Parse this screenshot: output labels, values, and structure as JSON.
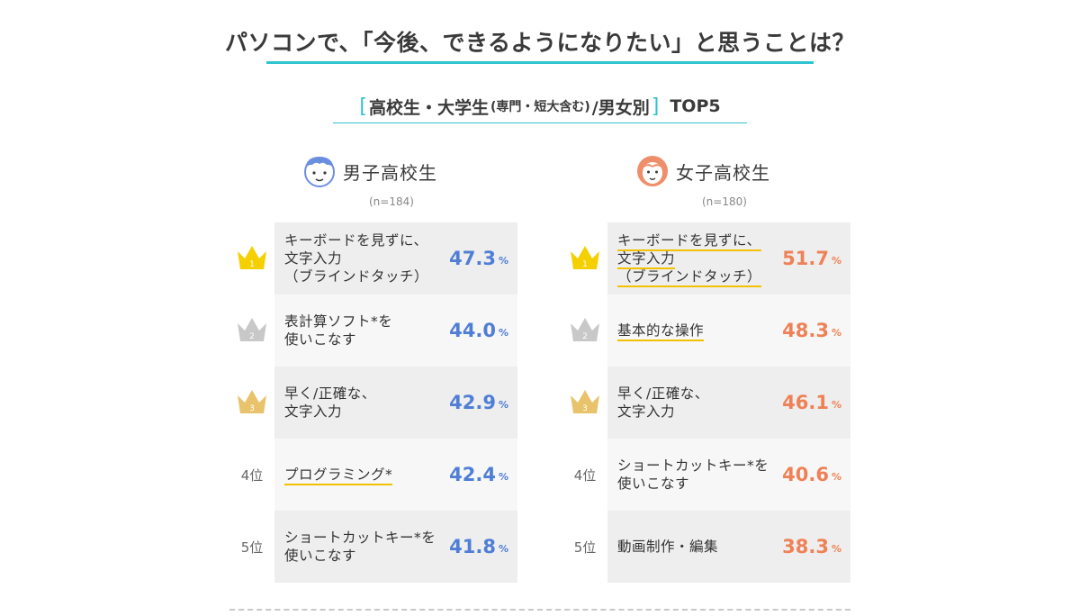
{
  "title": "パソコンで、「今後、できるようになりたい」と思うことは？",
  "subtitle": {
    "main": "高校生・大学生",
    "small": "(専門・短大含む)",
    "rest": "/男女別",
    "top": "TOP5",
    "bracket_open": "[",
    "bracket_close": "]"
  },
  "colors": {
    "accent": "#2ec4cf",
    "boys_value": "#4f7ed6",
    "girls_value": "#ef8156",
    "highlight": "#f2c200",
    "gold": "#f5d000",
    "silver": "#c8c8c8",
    "bronze": "#e8c36b"
  },
  "chart_data": [
    {
      "type": "table",
      "group": "男子高校生",
      "n": "(n=184)",
      "ranks": [
        "1",
        "2",
        "3",
        "4位",
        "5位"
      ],
      "categories": [
        "キーボードを見ずに、\n文字入力\n（ブラインドタッチ）",
        "表計算ソフト*を\n使いこなす",
        "早く/正確な、\n文字入力",
        "プログラミング*",
        "ショートカットキー*を\n使いこなす"
      ],
      "values": [
        47.3,
        44.0,
        42.9,
        42.4,
        41.8
      ],
      "value_labels": [
        "47.3",
        "44.0",
        "42.9",
        "42.4",
        "41.8"
      ],
      "unit": "%",
      "highlighted": [
        false,
        false,
        false,
        true,
        false
      ]
    },
    {
      "type": "table",
      "group": "女子高校生",
      "n": "(n=180)",
      "ranks": [
        "1",
        "2",
        "3",
        "4位",
        "5位"
      ],
      "categories": [
        "キーボードを見ずに、\n文字入力\n（ブラインドタッチ）",
        "基本的な操作",
        "早く/正確な、\n文字入力",
        "ショートカットキー*を\n使いこなす",
        "動画制作・編集"
      ],
      "values": [
        51.7,
        48.3,
        46.1,
        40.6,
        38.3
      ],
      "value_labels": [
        "51.7",
        "48.3",
        "46.1",
        "40.6",
        "38.3"
      ],
      "unit": "%",
      "highlighted": [
        true,
        true,
        false,
        false,
        false
      ]
    }
  ]
}
